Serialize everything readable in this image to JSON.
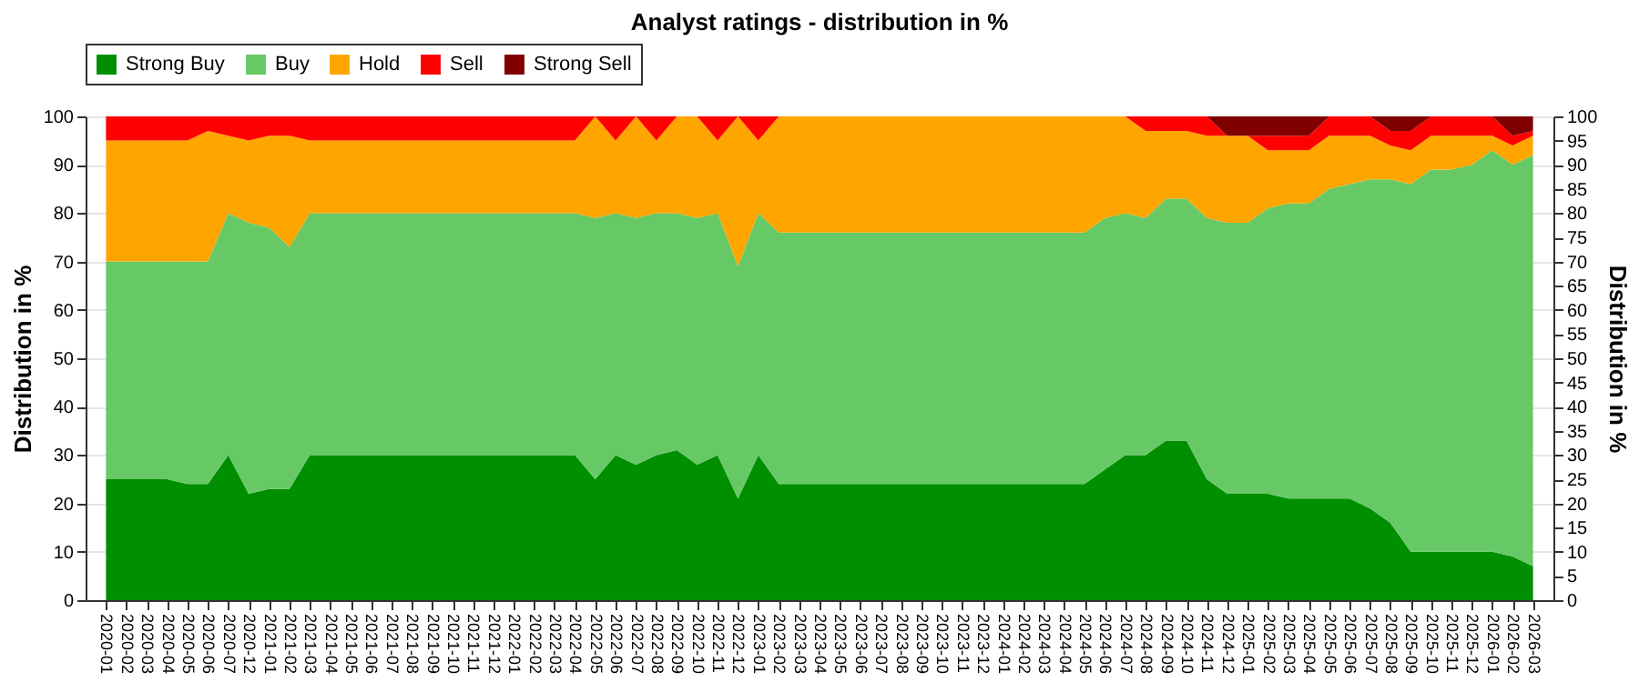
{
  "chart_data": {
    "type": "area",
    "title": "Analyst ratings - distribution in %",
    "ylabel": "Distribution in %",
    "y2label": "Distribution in %",
    "stacked": true,
    "grid": "y",
    "legend": "top left",
    "categories": [
      "2020-01",
      "2020-02",
      "2020-03",
      "2020-04",
      "2020-05",
      "2020-06",
      "2020-07",
      "2020-12",
      "2021-01",
      "2021-02",
      "2021-03",
      "2021-04",
      "2021-05",
      "2021-06",
      "2021-07",
      "2021-08",
      "2021-09",
      "2021-10",
      "2021-11",
      "2021-12",
      "2022-01",
      "2022-02",
      "2022-03",
      "2022-04",
      "2022-05",
      "2022-06",
      "2022-07",
      "2022-08",
      "2022-09",
      "2022-10",
      "2022-11",
      "2022-12",
      "2023-01",
      "2023-02",
      "2023-03",
      "2023-04",
      "2023-05",
      "2023-06",
      "2023-07",
      "2023-08",
      "2023-09",
      "2023-10",
      "2023-11",
      "2023-12",
      "2024-01",
      "2024-02",
      "2024-03",
      "2024-04",
      "2024-05",
      "2024-06",
      "2024-07",
      "2024-08",
      "2024-09",
      "2024-10",
      "2024-11",
      "2024-12",
      "2025-01",
      "2025-02",
      "2025-03",
      "2025-04",
      "2025-05",
      "2025-06",
      "2025-07",
      "2025-08",
      "2025-09",
      "2025-10",
      "2025-11",
      "2025-12",
      "2026-01",
      "2026-02",
      "2026-03"
    ],
    "series": [
      {
        "name": "Strong Buy",
        "color": "#008f00",
        "values": [
          25,
          25,
          25,
          25,
          24,
          24,
          30,
          22,
          23,
          23,
          30,
          30,
          30,
          30,
          30,
          30,
          30,
          30,
          30,
          30,
          30,
          30,
          30,
          30,
          25,
          30,
          28,
          30,
          31,
          28,
          30,
          21,
          30,
          24,
          24,
          24,
          24,
          24,
          24,
          24,
          24,
          24,
          24,
          24,
          24,
          24,
          24,
          24,
          24,
          27,
          30,
          30,
          33,
          33,
          25,
          22,
          22,
          22,
          21,
          21,
          21,
          21,
          19,
          16,
          10,
          10,
          10,
          10,
          10,
          9,
          7
        ]
      },
      {
        "name": "Buy",
        "color": "#66c966",
        "values": [
          45,
          45,
          45,
          45,
          46,
          46,
          50,
          56,
          54,
          50,
          50,
          50,
          50,
          50,
          50,
          50,
          50,
          50,
          50,
          50,
          50,
          50,
          50,
          50,
          54,
          50,
          51,
          50,
          49,
          51,
          50,
          48,
          50,
          52,
          52,
          52,
          52,
          52,
          52,
          52,
          52,
          52,
          52,
          52,
          52,
          52,
          52,
          52,
          52,
          52,
          50,
          49,
          50,
          50,
          54,
          56,
          56,
          59,
          61,
          61,
          64,
          65,
          68,
          71,
          76,
          79,
          79,
          80,
          83,
          81,
          85
        ]
      },
      {
        "name": "Hold",
        "color": "#ffa500",
        "values": [
          25,
          25,
          25,
          25,
          25,
          27,
          16,
          17,
          19,
          23,
          15,
          15,
          15,
          15,
          15,
          15,
          15,
          15,
          15,
          15,
          15,
          15,
          15,
          15,
          21,
          15,
          21,
          15,
          20,
          21,
          15,
          31,
          15,
          24,
          24,
          24,
          24,
          24,
          24,
          24,
          24,
          24,
          24,
          24,
          24,
          24,
          24,
          24,
          24,
          21,
          20,
          18,
          14,
          14,
          17,
          18,
          18,
          12,
          11,
          11,
          11,
          10,
          9,
          7,
          7,
          7,
          7,
          6,
          3,
          4,
          4
        ]
      },
      {
        "name": "Sell",
        "color": "#ff0000",
        "values": [
          5,
          5,
          5,
          5,
          5,
          3,
          4,
          5,
          4,
          4,
          5,
          5,
          5,
          5,
          5,
          5,
          5,
          5,
          5,
          5,
          5,
          5,
          5,
          5,
          0,
          5,
          0,
          5,
          0,
          0,
          5,
          0,
          5,
          0,
          0,
          0,
          0,
          0,
          0,
          0,
          0,
          0,
          0,
          0,
          0,
          0,
          0,
          0,
          0,
          0,
          0,
          3,
          3,
          3,
          4,
          0,
          0,
          3,
          3,
          3,
          4,
          4,
          4,
          3,
          4,
          4,
          4,
          4,
          4,
          2,
          1
        ]
      },
      {
        "name": "Strong Sell",
        "color": "#800000",
        "values": [
          0,
          0,
          0,
          0,
          0,
          0,
          0,
          0,
          0,
          0,
          0,
          0,
          0,
          0,
          0,
          0,
          0,
          0,
          0,
          0,
          0,
          0,
          0,
          0,
          0,
          0,
          0,
          0,
          0,
          0,
          0,
          0,
          0,
          0,
          0,
          0,
          0,
          0,
          0,
          0,
          0,
          0,
          0,
          0,
          0,
          0,
          0,
          0,
          0,
          0,
          0,
          0,
          0,
          0,
          0,
          4,
          4,
          4,
          4,
          4,
          0,
          0,
          0,
          3,
          3,
          0,
          0,
          0,
          0,
          4,
          3
        ]
      }
    ],
    "ylim": [
      0,
      100
    ],
    "yticks": [
      0,
      10,
      20,
      30,
      40,
      50,
      60,
      70,
      80,
      90,
      100
    ],
    "y2lim": [
      0,
      100
    ],
    "y2ticks": [
      0,
      5,
      10,
      15,
      20,
      25,
      30,
      35,
      40,
      45,
      50,
      55,
      60,
      65,
      70,
      75,
      80,
      85,
      90,
      95,
      100
    ]
  }
}
